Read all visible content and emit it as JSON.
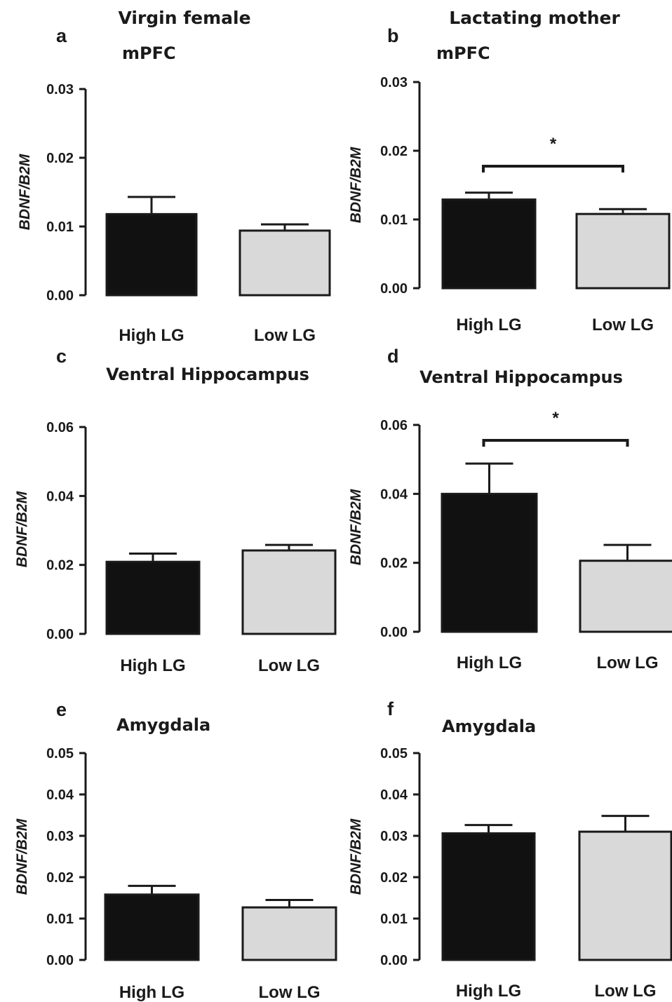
{
  "figure": {
    "column_titles": [
      "Virgin female",
      "Lactating mother"
    ]
  },
  "colors": {
    "high_lg": "#111111",
    "low_lg": "#d9d9d9",
    "stroke": "#1a1a1a"
  },
  "chart_data": [
    {
      "panel": "a",
      "type": "bar",
      "title": "mPFC",
      "column": "Virgin female",
      "ylabel": "BDNF/B2M",
      "ylim": [
        0,
        0.03
      ],
      "yticks": [
        "0.00",
        "0.01",
        "0.02",
        "0.03"
      ],
      "categories": [
        "High LG",
        "Low LG"
      ],
      "values": [
        0.0118,
        0.0094
      ],
      "errors": [
        0.0025,
        0.0009
      ],
      "significance": null
    },
    {
      "panel": "b",
      "type": "bar",
      "title": "mPFC",
      "column": "Lactating mother",
      "ylabel": "BDNF/B2M",
      "ylim": [
        0,
        0.03
      ],
      "yticks": [
        "0.00",
        "0.01",
        "0.02",
        "0.03"
      ],
      "categories": [
        "High LG",
        "Low LG"
      ],
      "values": [
        0.0129,
        0.0108
      ],
      "errors": [
        0.001,
        0.0007
      ],
      "significance": "*"
    },
    {
      "panel": "c",
      "type": "bar",
      "title": "Ventral Hippocampus",
      "column": "Virgin female",
      "ylabel": "BDNF/B2M",
      "ylim": [
        0,
        0.06
      ],
      "yticks": [
        "0.00",
        "0.02",
        "0.04",
        "0.06"
      ],
      "categories": [
        "High LG",
        "Low LG"
      ],
      "values": [
        0.0209,
        0.0242
      ],
      "errors": [
        0.0024,
        0.0016
      ],
      "significance": null
    },
    {
      "panel": "d",
      "type": "bar",
      "title": "Ventral Hippocampus",
      "column": "Lactating mother",
      "ylabel": "BDNF/B2M",
      "ylim": [
        0,
        0.06
      ],
      "yticks": [
        "0.00",
        "0.02",
        "0.04",
        "0.06"
      ],
      "categories": [
        "High LG",
        "Low LG"
      ],
      "values": [
        0.04,
        0.0206
      ],
      "errors": [
        0.0088,
        0.0046
      ],
      "significance": "*"
    },
    {
      "panel": "e",
      "type": "bar",
      "title": "Amygdala",
      "column": "Virgin female",
      "ylabel": "BDNF/B2M",
      "ylim": [
        0,
        0.05
      ],
      "yticks": [
        "0.00",
        "0.01",
        "0.02",
        "0.03",
        "0.04",
        "0.05"
      ],
      "categories": [
        "High LG",
        "Low LG"
      ],
      "values": [
        0.0158,
        0.0127
      ],
      "errors": [
        0.0021,
        0.0018
      ],
      "significance": null
    },
    {
      "panel": "f",
      "type": "bar",
      "title": "Amygdala",
      "column": "Lactating mother",
      "ylabel": "BDNF/B2M",
      "ylim": [
        0,
        0.05
      ],
      "yticks": [
        "0.00",
        "0.01",
        "0.02",
        "0.03",
        "0.04",
        "0.05"
      ],
      "categories": [
        "High LG",
        "Low LG"
      ],
      "values": [
        0.0306,
        0.031
      ],
      "errors": [
        0.002,
        0.0038
      ],
      "significance": null
    }
  ]
}
